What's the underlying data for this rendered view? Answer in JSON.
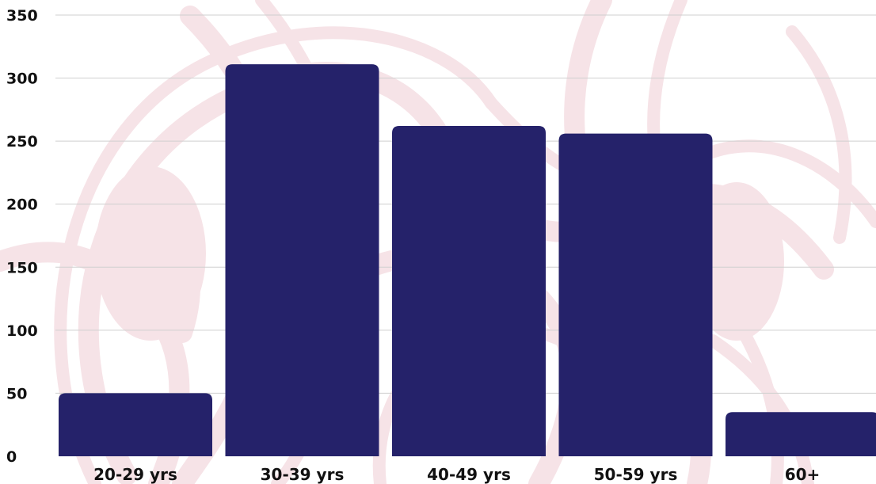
{
  "chart_data": {
    "type": "bar",
    "categories": [
      "20-29 yrs",
      "30-39 yrs",
      "40-49 yrs",
      "50-59 yrs",
      "60+"
    ],
    "values": [
      50,
      311,
      262,
      256,
      35
    ],
    "ylim": [
      0,
      350
    ],
    "yticks": [
      0,
      50,
      100,
      150,
      200,
      250,
      300,
      350
    ],
    "grid": true,
    "legend": "none",
    "title": "",
    "xlabel": "",
    "ylabel": ""
  },
  "colors": {
    "bar": "#25226a",
    "background": "#ffffff",
    "watermark": "#f6e3e7",
    "grid": "#cfcfcf",
    "text": "#111111"
  },
  "decorations": {
    "background_watermark_icon": "decorative-knot-illustration"
  }
}
